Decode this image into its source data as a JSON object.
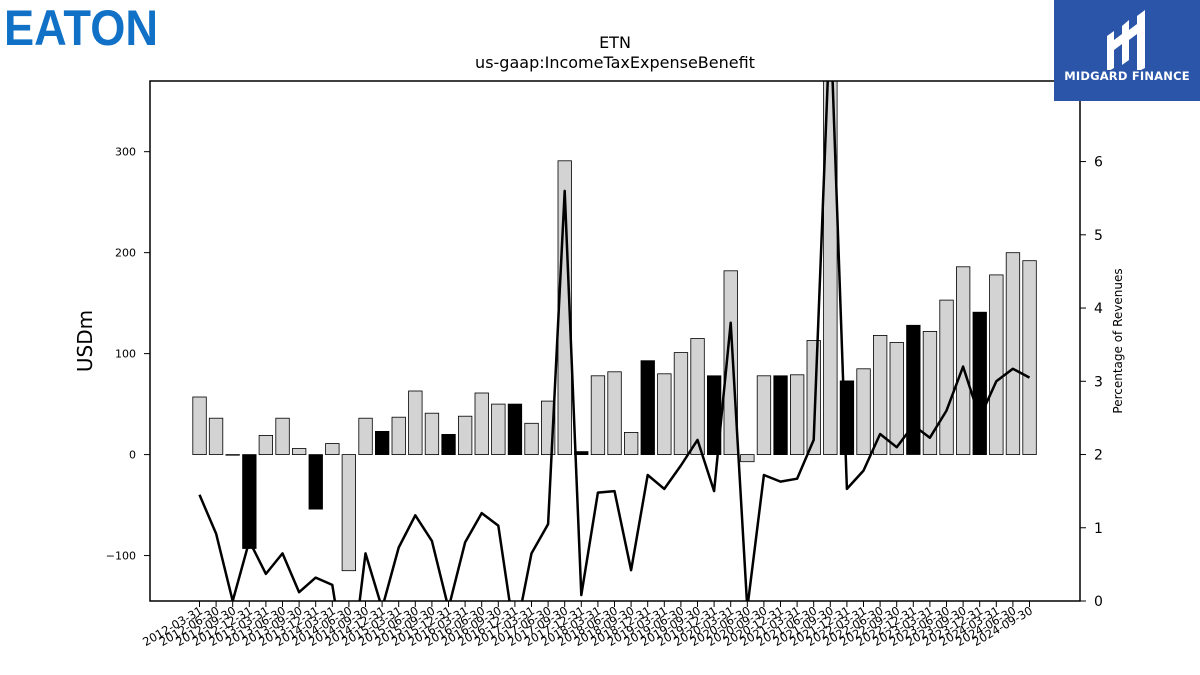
{
  "header": {
    "company_logo_text": "EATON",
    "brand_name": "MIDGARD FINANCE"
  },
  "colors": {
    "eaton_blue": "#1071c6",
    "brand_bg": "#2a55a8",
    "bar_fill": "#d3d3d3",
    "bar_highlight": "#000000",
    "line": "#000000"
  },
  "chart_data": {
    "type": "bar",
    "title": "ETN",
    "subtitle": "us-gaap:IncomeTaxExpenseBenefit",
    "ylabel": "USDm",
    "y2label": "Percentage of Revenues",
    "ylim": [
      -145,
      370
    ],
    "y2lim": [
      0,
      7.1
    ],
    "yticks": [
      -100,
      0,
      100,
      200,
      300
    ],
    "y2ticks": [
      0,
      1,
      2,
      3,
      4,
      5,
      6
    ],
    "categories": [
      "2012-03-31",
      "2012-06-30",
      "2012-09-30",
      "2012-12-31",
      "2013-03-31",
      "2013-06-30",
      "2013-09-30",
      "2013-12-31",
      "2014-03-31",
      "2014-06-30",
      "2014-09-30",
      "2014-12-31",
      "2015-03-31",
      "2015-06-30",
      "2015-09-30",
      "2015-12-31",
      "2016-03-31",
      "2016-06-30",
      "2016-09-30",
      "2016-12-31",
      "2017-03-31",
      "2017-06-30",
      "2017-09-30",
      "2017-12-31",
      "2018-03-31",
      "2018-06-30",
      "2018-09-30",
      "2018-12-31",
      "2019-03-31",
      "2019-06-30",
      "2019-09-30",
      "2019-12-31",
      "2020-03-31",
      "2020-06-30",
      "2020-09-30",
      "2020-12-31",
      "2021-03-31",
      "2021-06-30",
      "2021-09-30",
      "2021-12-31",
      "2022-03-31",
      "2022-06-30",
      "2022-09-30",
      "2022-12-31",
      "2023-03-31",
      "2023-06-30",
      "2023-09-30",
      "2023-12-31",
      "2024-03-31",
      "2024-06-30",
      "2024-09-30"
    ],
    "series": [
      {
        "kind": "bar",
        "values": [
          57,
          36,
          0,
          -93,
          19,
          36,
          6,
          -54,
          11,
          -115,
          36,
          23,
          37,
          63,
          41,
          20,
          38,
          61,
          50,
          50,
          31,
          53,
          291,
          3,
          78,
          82,
          22,
          93,
          80,
          101,
          115,
          78,
          182,
          -7,
          78,
          78,
          79,
          113,
          400,
          73,
          85,
          118,
          111,
          128,
          122,
          153,
          186,
          141,
          178,
          200,
          192
        ],
        "highlight": [
          0,
          0,
          1,
          1,
          0,
          0,
          0,
          1,
          0,
          0,
          0,
          1,
          0,
          0,
          0,
          1,
          0,
          0,
          0,
          1,
          0,
          0,
          0,
          1,
          0,
          0,
          0,
          1,
          0,
          0,
          0,
          1,
          0,
          0,
          0,
          1,
          0,
          0,
          0,
          1,
          0,
          0,
          0,
          1,
          0,
          0,
          0,
          1,
          0,
          0,
          0
        ]
      },
      {
        "kind": "line",
        "axis": "right",
        "values": [
          1.45,
          0.92,
          0.0,
          0.82,
          0.37,
          0.65,
          0.12,
          0.32,
          0.22,
          -1.2,
          0.65,
          -0.1,
          0.73,
          1.17,
          0.82,
          -0.1,
          0.8,
          1.2,
          1.03,
          -0.5,
          0.65,
          1.05,
          5.6,
          0.08,
          1.48,
          1.5,
          0.42,
          1.72,
          1.53,
          1.85,
          2.2,
          1.5,
          3.8,
          -0.1,
          1.72,
          1.63,
          1.67,
          2.2,
          8.0,
          1.53,
          1.78,
          2.28,
          2.1,
          2.4,
          2.23,
          2.6,
          3.2,
          2.5,
          3.0,
          3.17,
          3.05
        ]
      }
    ],
    "grid": false,
    "legend": "none"
  }
}
